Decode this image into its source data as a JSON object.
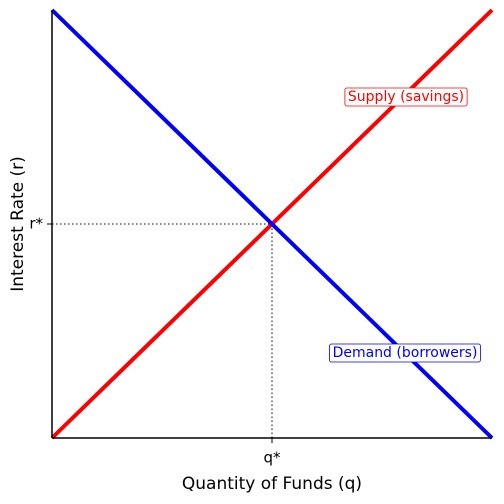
{
  "chart_data": {
    "type": "line",
    "x_label": "Quantity of Funds (q)",
    "y_label": "Interest Rate (r)",
    "x": [
      0,
      10
    ],
    "series": [
      {
        "name": "Supply (savings)",
        "color": "#ff0000",
        "values": [
          0,
          10
        ]
      },
      {
        "name": "Demand (borrowers)",
        "color": "#0000ff",
        "values": [
          10,
          0
        ]
      }
    ],
    "xlim": [
      0,
      10
    ],
    "ylim": [
      0,
      10
    ],
    "xticks": [
      {
        "value": 5,
        "label": "q*"
      }
    ],
    "yticks": [
      {
        "value": 5,
        "label": "r*"
      }
    ]
  }
}
